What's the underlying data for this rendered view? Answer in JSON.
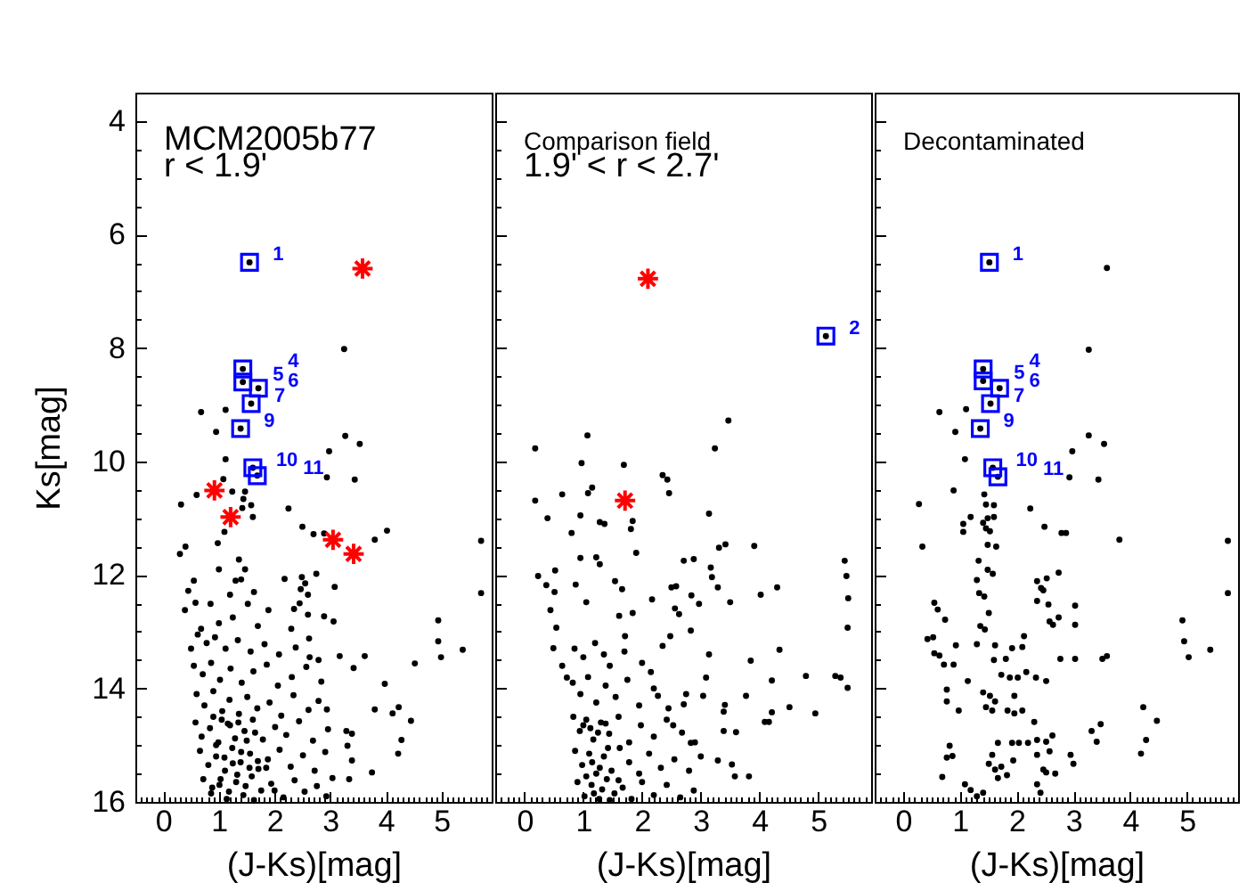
{
  "chart_data": [
    {
      "type": "scatter",
      "title": "MCM2005b77",
      "subtitle": "r < 1.9'",
      "xlabel": "(J-Ks)[mag]",
      "ylabel": "Ks[mag]",
      "xlim": [
        -0.5,
        5.9
      ],
      "ylim": [
        16,
        3.5
      ],
      "xticks": [
        {
          "value": -0.4,
          "label": null
        },
        {
          "value": -0.3,
          "label": null
        },
        {
          "value": -0.2,
          "label": null
        },
        {
          "value": -0.1,
          "label": null
        },
        0,
        {
          "value": 0.1,
          "label": null
        },
        {
          "value": 0.2,
          "label": null
        },
        {
          "value": 0.3,
          "label": null
        },
        {
          "value": 0.4,
          "label": null
        },
        {
          "value": 0.5,
          "label": null
        },
        {
          "value": 0.6,
          "label": null
        },
        {
          "value": 0.7,
          "label": null
        },
        {
          "value": 0.8,
          "label": null
        },
        {
          "value": 0.9,
          "label": null
        },
        1,
        {
          "value": 1.1,
          "label": null
        },
        {
          "value": 1.2,
          "label": null
        },
        {
          "value": 1.3,
          "label": null
        },
        {
          "value": 1.4,
          "label": null
        },
        {
          "value": 1.5,
          "label": null
        },
        {
          "value": 1.6,
          "label": null
        },
        {
          "value": 1.7,
          "label": null
        },
        {
          "value": 1.8,
          "label": null
        },
        {
          "value": 1.9,
          "label": null
        },
        2,
        {
          "value": 2.1,
          "label": null
        },
        {
          "value": 2.2,
          "label": null
        },
        {
          "value": 2.3,
          "label": null
        },
        {
          "value": 2.4,
          "label": null
        },
        {
          "value": 2.5,
          "label": null
        },
        {
          "value": 2.6,
          "label": null
        },
        {
          "value": 2.7,
          "label": null
        },
        {
          "value": 2.8,
          "label": null
        },
        {
          "value": 2.9,
          "label": null
        },
        3,
        {
          "value": 3.1,
          "label": null
        },
        {
          "value": 3.2,
          "label": null
        },
        {
          "value": 3.3,
          "label": null
        },
        {
          "value": 3.4,
          "label": null
        },
        {
          "value": 3.5,
          "label": null
        },
        {
          "value": 3.6,
          "label": null
        },
        {
          "value": 3.7,
          "label": null
        },
        {
          "value": 3.8,
          "label": null
        },
        {
          "value": 3.9,
          "label": null
        },
        4,
        {
          "value": 4.1,
          "label": null
        },
        {
          "value": 4.2,
          "label": null
        },
        {
          "value": 4.3,
          "label": null
        },
        {
          "value": 4.4,
          "label": null
        },
        {
          "value": 4.5,
          "label": null
        },
        {
          "value": 4.6,
          "label": null
        },
        {
          "value": 4.7,
          "label": null
        },
        {
          "value": 4.8,
          "label": null
        },
        {
          "value": 4.9,
          "label": null
        },
        5,
        {
          "value": 5.1,
          "label": null
        },
        {
          "value": 5.2,
          "label": null
        },
        {
          "value": 5.3,
          "label": null
        },
        {
          "value": 5.4,
          "label": null
        },
        {
          "value": 5.5,
          "label": null
        },
        {
          "value": 5.6,
          "label": null
        },
        {
          "value": 5.7,
          "label": null
        },
        {
          "value": 5.8,
          "label": null
        }
      ],
      "yticks": [
        4,
        {
          "value": 4.5,
          "label": null
        },
        {
          "value": 5,
          "label": null
        },
        {
          "value": 5.5,
          "label": null
        },
        6,
        {
          "value": 6.5,
          "label": null
        },
        {
          "value": 7,
          "label": null
        },
        {
          "value": 7.5,
          "label": null
        },
        8,
        {
          "value": 8.5,
          "label": null
        },
        {
          "value": 9,
          "label": null
        },
        {
          "value": 9.5,
          "label": null
        },
        10,
        {
          "value": 10.5,
          "label": null
        },
        {
          "value": 11,
          "label": null
        },
        {
          "value": 11.5,
          "label": null
        },
        12,
        {
          "value": 12.5,
          "label": null
        },
        {
          "value": 13,
          "label": null
        },
        {
          "value": 13.5,
          "label": null
        },
        14,
        {
          "value": 14.5,
          "label": null
        },
        {
          "value": 15,
          "label": null
        },
        {
          "value": 15.5,
          "label": null
        },
        16
      ],
      "series": [
        {
          "color": "#000000",
          "marker": "circle",
          "x": [
            1.55,
            1.43,
            1.43,
            1.71,
            1.58,
            1.39,
            1.61,
            1.69,
            3.25,
            0.68,
            1.12,
            0.95,
            3.27,
            3.53,
            2.98,
            1.12,
            2.94,
            3.44,
            1.08,
            1.24,
            1.47,
            0.32,
            0.6,
            1.44,
            1.58,
            1.42,
            2.25,
            1.61,
            2.5,
            4.02,
            1.1,
            2.7,
            2.89,
            3.8,
            5.71,
            0.4,
            0.3,
            0.98,
            1.36,
            1.47,
            0.55,
            1.3,
            1.4,
            2.18,
            2.49,
            2.55,
            2.47,
            2.75,
            3.08,
            5.71,
            0.45,
            0.58,
            0.39,
            0.85,
            1.63,
            1.52,
            1.89,
            2.89,
            3.06,
            4.94,
            4.94,
            4.99,
            5.38,
            4.52,
            3.62,
            3.42,
            3.17,
            2.63,
            2.79,
            3.98,
            3.8,
            4.12,
            4.23,
            4.45,
            4.28,
            4.22,
            3.75,
            3.34,
            3.39,
            3.31,
            3.39,
            2.94,
            3.29,
            0.5,
            0.68,
            1.0,
            1.25,
            1.7,
            2.3,
            2.6,
            2.45,
            1.2,
            1.0,
            2.6,
            2.35,
            0.62,
            0.78,
            0.93,
            1.12,
            1.34,
            1.57,
            1.82,
            2.08,
            2.38,
            2.62,
            0.55,
            0.71,
            0.86,
            1.02,
            1.21,
            1.41,
            1.62,
            1.86,
            2.06,
            2.31,
            2.57,
            2.84,
            0.6,
            0.74,
            0.9,
            1.06,
            1.19,
            1.36,
            1.51,
            1.69,
            1.91,
            2.12,
            2.34,
            2.61,
            2.79,
            0.58,
            0.69,
            0.84,
            0.99,
            1.16,
            1.29,
            1.46,
            1.61,
            1.79,
            2.01,
            2.21,
            2.44,
            2.69,
            2.96,
            0.66,
            0.81,
            0.95,
            1.11,
            1.24,
            1.39,
            1.56,
            1.71,
            1.88,
            2.09,
            2.29,
            2.51,
            2.72,
            2.91,
            0.72,
            0.86,
            1.01,
            1.14,
            1.31,
            1.44,
            1.59,
            1.76,
            1.94,
            2.16,
            2.36,
            2.54,
            2.76,
            2.93,
            3.04,
            0.9,
            1.05,
            1.2,
            1.35,
            1.5,
            1.65,
            0.95,
            1.1,
            1.25,
            1.4,
            1.55,
            1.7,
            0.88,
            1.03,
            1.18,
            1.33,
            1.48,
            1.63,
            1.85,
            2.0
          ],
          "values": [
            6.49,
            8.37,
            8.6,
            8.71,
            8.98,
            9.42,
            10.11,
            10.25,
            8.02,
            9.13,
            9.09,
            9.48,
            9.55,
            9.69,
            9.82,
            9.96,
            10.28,
            10.32,
            10.31,
            10.53,
            10.53,
            10.76,
            10.59,
            10.66,
            10.77,
            10.82,
            10.83,
            10.98,
            11.15,
            11.22,
            11.24,
            11.28,
            11.27,
            11.38,
            11.4,
            11.5,
            11.63,
            11.44,
            11.73,
            11.9,
            12.1,
            12.1,
            12.08,
            12.07,
            12.04,
            12.15,
            12.25,
            11.98,
            12.21,
            12.32,
            12.28,
            12.49,
            12.62,
            12.51,
            12.3,
            12.51,
            12.62,
            12.73,
            12.82,
            12.8,
            13.17,
            13.45,
            13.32,
            13.56,
            13.43,
            13.64,
            13.43,
            13.45,
            13.5,
            13.92,
            14.37,
            14.44,
            14.33,
            14.57,
            14.91,
            15.15,
            15.48,
            15.6,
            15.27,
            15.01,
            14.8,
            14.37,
            14.75,
            13.3,
            12.95,
            12.85,
            12.75,
            12.9,
            12.95,
            12.7,
            12.5,
            12.35,
            11.9,
            12.35,
            12.6,
            13.05,
            13.2,
            13.1,
            13.3,
            13.15,
            13.35,
            13.22,
            13.4,
            13.28,
            13.12,
            13.6,
            13.75,
            13.55,
            13.85,
            13.65,
            13.9,
            13.7,
            13.58,
            13.95,
            13.8,
            13.62,
            13.88,
            14.1,
            14.3,
            14.05,
            14.4,
            14.2,
            14.45,
            14.15,
            14.35,
            14.25,
            14.48,
            14.12,
            14.38,
            14.22,
            14.6,
            14.85,
            14.7,
            14.95,
            14.62,
            14.88,
            14.75,
            14.55,
            14.9,
            14.68,
            14.82,
            14.58,
            14.92,
            14.72,
            15.1,
            15.35,
            15.2,
            15.45,
            15.05,
            15.3,
            15.15,
            15.42,
            15.25,
            15.08,
            15.38,
            15.18,
            15.45,
            15.12,
            15.6,
            15.85,
            15.7,
            15.95,
            15.65,
            15.88,
            15.55,
            15.8,
            15.68,
            15.92,
            15.62,
            15.82,
            15.72,
            15.9,
            15.58,
            14.5,
            14.55,
            14.65,
            14.6,
            14.92,
            14.78,
            15.0,
            15.22,
            15.32,
            15.12,
            15.4,
            15.28,
            15.75,
            15.6,
            15.82,
            15.52,
            15.72,
            15.97,
            15.4,
            15.8
          ]
        },
        {
          "color": "#0000ff",
          "marker": "square",
          "x": [
            1.55,
            1.43,
            1.43,
            1.71,
            1.58,
            1.39,
            1.61,
            1.69
          ],
          "values": [
            6.49,
            8.37,
            8.6,
            8.71,
            8.98,
            9.42,
            10.11,
            10.25
          ]
        },
        {
          "color": "#ff0000",
          "marker": "cross",
          "x": [
            3.58,
            0.92,
            1.21,
            3.05,
            3.42
          ],
          "values": [
            6.6,
            10.51,
            10.98,
            11.38,
            11.63
          ]
        }
      ],
      "annotations": [
        {
          "text": "1",
          "x": 1.55,
          "y": 6.49
        },
        {
          "text": "5",
          "x": 1.43,
          "y": 8.6
        },
        {
          "text": "4",
          "x": 1.43,
          "y": 8.37
        },
        {
          "text": "6",
          "x": 1.71,
          "y": 8.71
        },
        {
          "text": "7",
          "x": 1.58,
          "y": 8.98
        },
        {
          "text": "9",
          "x": 1.39,
          "y": 9.42
        },
        {
          "text": "10",
          "x": 1.61,
          "y": 10.11
        },
        {
          "text": "11",
          "x": 1.69,
          "y": 10.25
        }
      ]
    },
    {
      "type": "scatter",
      "title": "Comparison field",
      "subtitle": "1.9' < r < 2.7'",
      "xlabel": "(J-Ks)[mag]",
      "xlim": [
        -0.5,
        5.9
      ],
      "ylim": [
        16,
        3.5
      ],
      "tick_labels": "x",
      "xticks": [
        {
          "value": -0.4,
          "label": null
        },
        {
          "value": -0.3,
          "label": null
        },
        {
          "value": -0.2,
          "label": null
        },
        {
          "value": -0.1,
          "label": null
        },
        0,
        {
          "value": 0.1,
          "label": null
        },
        {
          "value": 0.2,
          "label": null
        },
        {
          "value": 0.3,
          "label": null
        },
        {
          "value": 0.4,
          "label": null
        },
        {
          "value": 0.5,
          "label": null
        },
        {
          "value": 0.6,
          "label": null
        },
        {
          "value": 0.7,
          "label": null
        },
        {
          "value": 0.8,
          "label": null
        },
        {
          "value": 0.9,
          "label": null
        },
        1,
        {
          "value": 1.1,
          "label": null
        },
        {
          "value": 1.2,
          "label": null
        },
        {
          "value": 1.3,
          "label": null
        },
        {
          "value": 1.4,
          "label": null
        },
        {
          "value": 1.5,
          "label": null
        },
        {
          "value": 1.6,
          "label": null
        },
        {
          "value": 1.7,
          "label": null
        },
        {
          "value": 1.8,
          "label": null
        },
        {
          "value": 1.9,
          "label": null
        },
        2,
        {
          "value": 2.1,
          "label": null
        },
        {
          "value": 2.2,
          "label": null
        },
        {
          "value": 2.3,
          "label": null
        },
        {
          "value": 2.4,
          "label": null
        },
        {
          "value": 2.5,
          "label": null
        },
        {
          "value": 2.6,
          "label": null
        },
        {
          "value": 2.7,
          "label": null
        },
        {
          "value": 2.8,
          "label": null
        },
        {
          "value": 2.9,
          "label": null
        },
        3,
        {
          "value": 3.1,
          "label": null
        },
        {
          "value": 3.2,
          "label": null
        },
        {
          "value": 3.3,
          "label": null
        },
        {
          "value": 3.4,
          "label": null
        },
        {
          "value": 3.5,
          "label": null
        },
        {
          "value": 3.6,
          "label": null
        },
        {
          "value": 3.7,
          "label": null
        },
        {
          "value": 3.8,
          "label": null
        },
        {
          "value": 3.9,
          "label": null
        },
        4,
        {
          "value": 4.1,
          "label": null
        },
        {
          "value": 4.2,
          "label": null
        },
        {
          "value": 4.3,
          "label": null
        },
        {
          "value": 4.4,
          "label": null
        },
        {
          "value": 4.5,
          "label": null
        },
        {
          "value": 4.6,
          "label": null
        },
        {
          "value": 4.7,
          "label": null
        },
        {
          "value": 4.8,
          "label": null
        },
        {
          "value": 4.9,
          "label": null
        },
        5,
        {
          "value": 5.1,
          "label": null
        },
        {
          "value": 5.2,
          "label": null
        },
        {
          "value": 5.3,
          "label": null
        },
        {
          "value": 5.4,
          "label": null
        },
        {
          "value": 5.5,
          "label": null
        },
        {
          "value": 5.6,
          "label": null
        },
        {
          "value": 5.7,
          "label": null
        },
        {
          "value": 5.8,
          "label": null
        }
      ],
      "yticks": [
        4,
        {
          "value": 4.5,
          "label": null
        },
        {
          "value": 5,
          "label": null
        },
        {
          "value": 5.5,
          "label": null
        },
        6,
        {
          "value": 6.5,
          "label": null
        },
        {
          "value": 7,
          "label": null
        },
        {
          "value": 7.5,
          "label": null
        },
        8,
        {
          "value": 8.5,
          "label": null
        },
        {
          "value": 9,
          "label": null
        },
        {
          "value": 9.5,
          "label": null
        },
        10,
        {
          "value": 10.5,
          "label": null
        },
        {
          "value": 11,
          "label": null
        },
        {
          "value": 11.5,
          "label": null
        },
        12,
        {
          "value": 12.5,
          "label": null
        },
        {
          "value": 13,
          "label": null
        },
        {
          "value": 13.5,
          "label": null
        },
        14,
        {
          "value": 14.5,
          "label": null
        },
        {
          "value": 15,
          "label": null
        },
        {
          "value": 15.5,
          "label": null
        },
        16
      ],
      "series": [
        {
          "color": "#000000",
          "marker": "circle",
          "x": [
            5.13,
            3.47,
            1.07,
            0.18,
            3.24,
            0.97,
            1.69,
            2.35,
            2.43,
            2.46,
            1.15,
            1.08,
            0.64,
            0.18,
            0.39,
            0.95,
            1.28,
            1.36,
            1.84,
            1.81,
            0.8,
            3.14,
            3.42,
            3.31,
            3.91,
            5.45,
            5.48,
            5.51,
            5.5,
            5.5,
            5.29,
            5.38,
            4.79,
            4.95,
            4.21,
            4.34,
            3.85,
            4.3,
            4.02,
            4.51,
            4.21,
            4.09,
            4.16,
            3.6,
            3.58,
            3.82,
            3.53,
            3.77,
            3.41,
            3.39,
            3.5,
            3.29,
            3.17,
            3.19,
            2.71,
            2.88,
            2.5,
            2.58,
            2.84,
            2.56,
            2.63,
            2.97,
            2.17,
            1.9,
            1.22,
            1.28,
            0.95,
            0.23,
            0.52,
            0.37,
            0.51,
            0.87,
            1.05,
            1.54,
            1.66,
            0.44,
            0.54,
            0.49,
            0.64,
            0.72,
            1.61,
            1.84,
            1.35,
            1.71,
            2.15,
            2.27,
            2.83,
            2.48,
            3.14,
            2.71,
            2.53,
            2.83,
            3.09,
            3.04,
            3.39,
            3.29,
            0.85,
            1.0,
            1.2,
            1.45,
            1.7,
            2.0,
            2.35,
            0.82,
            0.95,
            1.08,
            1.22,
            1.38,
            1.55,
            1.75,
            1.95,
            2.2,
            2.45,
            2.75,
            0.83,
            0.94,
            1.05,
            1.17,
            1.3,
            1.44,
            1.6,
            1.78,
            1.98,
            2.2,
            2.42,
            2.68,
            2.9,
            0.86,
            0.98,
            1.1,
            1.22,
            1.35,
            1.48,
            1.62,
            1.78,
            1.95,
            2.12,
            2.32,
            2.55,
            2.8,
            3.0,
            0.9,
            1.02,
            1.14,
            1.27,
            1.4,
            1.53,
            1.67,
            1.82,
            2.0,
            2.2,
            2.42,
            2.65,
            2.88,
            1.0,
            1.12,
            1.25,
            1.38,
            1.15,
            1.28,
            1.42,
            1.05,
            1.18,
            1.32,
            1.45,
            1.6
          ],
          "values": [
            7.79,
            9.28,
            9.54,
            9.77,
            9.77,
            10.03,
            10.06,
            10.24,
            10.32,
            10.56,
            10.46,
            10.56,
            10.58,
            10.69,
            11.0,
            10.95,
            11.07,
            11.1,
            11.05,
            11.19,
            11.26,
            10.92,
            11.46,
            11.52,
            11.49,
            11.75,
            12.02,
            12.41,
            12.93,
            13.99,
            13.78,
            13.81,
            13.78,
            14.44,
            13.86,
            13.32,
            13.51,
            12.22,
            12.35,
            14.33,
            14.42,
            14.59,
            14.59,
            14.77,
            15.55,
            15.55,
            15.34,
            14.13,
            14.29,
            14.41,
            12.48,
            12.22,
            11.87,
            12.04,
            11.75,
            11.72,
            12.22,
            12.2,
            12.36,
            12.59,
            12.69,
            12.51,
            12.43,
            11.61,
            11.69,
            11.81,
            11.7,
            12.02,
            11.92,
            12.18,
            12.3,
            12.17,
            12.48,
            12.11,
            12.25,
            12.62,
            12.93,
            13.29,
            13.6,
            13.81,
            12.72,
            12.67,
            13.4,
            13.08,
            13.71,
            14.13,
            12.98,
            13.08,
            13.4,
            14.28,
            14.65,
            14.96,
            13.81,
            14.13,
            14.75,
            15.27,
            13.3,
            13.45,
            13.2,
            13.6,
            13.35,
            13.55,
            13.25,
            13.9,
            14.1,
            13.8,
            14.25,
            13.95,
            14.15,
            13.85,
            14.3,
            14.0,
            14.35,
            14.1,
            14.5,
            14.75,
            14.55,
            14.9,
            14.6,
            14.8,
            14.5,
            14.95,
            14.65,
            14.85,
            14.55,
            14.78,
            14.95,
            15.1,
            15.35,
            15.15,
            15.5,
            15.2,
            15.45,
            15.05,
            15.3,
            15.5,
            15.15,
            15.4,
            15.25,
            15.45,
            15.2,
            15.65,
            15.9,
            15.7,
            15.95,
            15.6,
            15.85,
            15.75,
            15.95,
            15.65,
            15.88,
            15.7,
            15.92,
            15.8,
            14.65,
            14.7,
            14.78,
            14.62,
            15.3,
            15.4,
            15.05,
            15.55,
            15.85,
            15.78,
            15.97,
            15.62
          ]
        },
        {
          "color": "#0000ff",
          "marker": "square",
          "x": [
            5.13
          ],
          "values": [
            7.79
          ]
        },
        {
          "color": "#ff0000",
          "marker": "cross",
          "x": [
            2.1,
            1.71
          ],
          "values": [
            6.78,
            10.69
          ]
        }
      ],
      "annotations": [
        {
          "text": "2",
          "x": 5.13,
          "y": 7.79
        }
      ]
    },
    {
      "type": "scatter",
      "title": "Decontaminated",
      "xlabel": "(J-Ks)[mag]",
      "xlim": [
        -0.5,
        5.9
      ],
      "ylim": [
        16,
        3.5
      ],
      "tick_labels": "x",
      "xticks": [
        {
          "value": -0.4,
          "label": null
        },
        {
          "value": -0.3,
          "label": null
        },
        {
          "value": -0.2,
          "label": null
        },
        {
          "value": -0.1,
          "label": null
        },
        0,
        {
          "value": 0.1,
          "label": null
        },
        {
          "value": 0.2,
          "label": null
        },
        {
          "value": 0.3,
          "label": null
        },
        {
          "value": 0.4,
          "label": null
        },
        {
          "value": 0.5,
          "label": null
        },
        {
          "value": 0.6,
          "label": null
        },
        {
          "value": 0.7,
          "label": null
        },
        {
          "value": 0.8,
          "label": null
        },
        {
          "value": 0.9,
          "label": null
        },
        1,
        {
          "value": 1.1,
          "label": null
        },
        {
          "value": 1.2,
          "label": null
        },
        {
          "value": 1.3,
          "label": null
        },
        {
          "value": 1.4,
          "label": null
        },
        {
          "value": 1.5,
          "label": null
        },
        {
          "value": 1.6,
          "label": null
        },
        {
          "value": 1.7,
          "label": null
        },
        {
          "value": 1.8,
          "label": null
        },
        {
          "value": 1.9,
          "label": null
        },
        2,
        {
          "value": 2.1,
          "label": null
        },
        {
          "value": 2.2,
          "label": null
        },
        {
          "value": 2.3,
          "label": null
        },
        {
          "value": 2.4,
          "label": null
        },
        {
          "value": 2.5,
          "label": null
        },
        {
          "value": 2.6,
          "label": null
        },
        {
          "value": 2.7,
          "label": null
        },
        {
          "value": 2.8,
          "label": null
        },
        {
          "value": 2.9,
          "label": null
        },
        3,
        {
          "value": 3.1,
          "label": null
        },
        {
          "value": 3.2,
          "label": null
        },
        {
          "value": 3.3,
          "label": null
        },
        {
          "value": 3.4,
          "label": null
        },
        {
          "value": 3.5,
          "label": null
        },
        {
          "value": 3.6,
          "label": null
        },
        {
          "value": 3.7,
          "label": null
        },
        {
          "value": 3.8,
          "label": null
        },
        {
          "value": 3.9,
          "label": null
        },
        4,
        {
          "value": 4.1,
          "label": null
        },
        {
          "value": 4.2,
          "label": null
        },
        {
          "value": 4.3,
          "label": null
        },
        {
          "value": 4.4,
          "label": null
        },
        {
          "value": 4.5,
          "label": null
        },
        {
          "value": 4.6,
          "label": null
        },
        {
          "value": 4.7,
          "label": null
        },
        {
          "value": 4.8,
          "label": null
        },
        {
          "value": 4.9,
          "label": null
        },
        5,
        {
          "value": 5.1,
          "label": null
        },
        {
          "value": 5.2,
          "label": null
        },
        {
          "value": 5.3,
          "label": null
        },
        {
          "value": 5.4,
          "label": null
        },
        {
          "value": 5.5,
          "label": null
        },
        {
          "value": 5.6,
          "label": null
        },
        {
          "value": 5.7,
          "label": null
        },
        {
          "value": 5.8,
          "label": null
        }
      ],
      "yticks": [
        4,
        {
          "value": 4.5,
          "label": null
        },
        {
          "value": 5,
          "label": null
        },
        {
          "value": 5.5,
          "label": null
        },
        6,
        {
          "value": 6.5,
          "label": null
        },
        {
          "value": 7,
          "label": null
        },
        {
          "value": 7.5,
          "label": null
        },
        8,
        {
          "value": 8.5,
          "label": null
        },
        {
          "value": 9,
          "label": null
        },
        {
          "value": 9.5,
          "label": null
        },
        10,
        {
          "value": 10.5,
          "label": null
        },
        {
          "value": 11,
          "label": null
        },
        {
          "value": 11.5,
          "label": null
        },
        12,
        {
          "value": 12.5,
          "label": null
        },
        {
          "value": 13,
          "label": null
        },
        {
          "value": 13.5,
          "label": null
        },
        14,
        {
          "value": 14.5,
          "label": null
        },
        {
          "value": 15,
          "label": null
        },
        {
          "value": 15.5,
          "label": null
        },
        16
      ],
      "series": [
        {
          "color": "#000000",
          "marker": "circle",
          "x": [
            1.52,
            1.41,
            1.41,
            1.7,
            1.54,
            1.36,
            1.58,
            1.67,
            3.59,
            3.27,
            0.64,
            1.11,
            0.92,
            3.27,
            3.54,
            2.98,
            1.09,
            2.93,
            3.44,
            0.89,
            0.28,
            1.43,
            1.46,
            1.6,
            1.19,
            1.41,
            2.24,
            1.6,
            2.49,
            2.79,
            2.87,
            1.06,
            1.06,
            1.46,
            1.53,
            1.49,
            0.34,
            1.49,
            1.64,
            3.81,
            5.72,
            1.33,
            1.49,
            1.58,
            1.3,
            2.36,
            2.53,
            2.74,
            2.43,
            2.47,
            5.72,
            1.34,
            1.43,
            0.55,
            0.61,
            1.51,
            2.36,
            2.56,
            2.58,
            2.64,
            2.74,
            3.03,
            0.74,
            1.36,
            1.44,
            0.43,
            0.53,
            2.13,
            3.03,
            4.92,
            4.95,
            5.03,
            5.41,
            3.51,
            3.59,
            2.77,
            3.03,
            0.55,
            0.64,
            0.72,
            0.89,
            0.93,
            1.3,
            1.62,
            1.6,
            1.81,
            1.92,
            2.1,
            1.14,
            0.77,
            0.77,
            0.98,
            1.41,
            1.53,
            1.62,
            1.46,
            1.57,
            1.73,
            1.88,
            2.02,
            2.17,
            2.34,
            2.52,
            1.96,
            1.84,
            1.96,
            2.1,
            2.31,
            2.36,
            2.52,
            2.63,
            1.67,
            1.92,
            2.04,
            2.2,
            0.82,
            0.87,
            0.77,
            1.57,
            1.73,
            1.62,
            1.94,
            2.36,
            2.58,
            2.47,
            2.68,
            2.95,
            3.0,
            3.32,
            3.48,
            3.41,
            4.23,
            4.47,
            4.28,
            4.19,
            0.69,
            1.09,
            1.19,
            1.3,
            1.41,
            2.36,
            2.42,
            2.52,
            1.51,
            1.67,
            1.83
          ],
          "values": [
            6.49,
            8.37,
            8.58,
            8.71,
            8.98,
            9.42,
            10.11,
            10.27,
            6.59,
            8.03,
            9.13,
            9.08,
            9.48,
            9.54,
            9.69,
            9.82,
            9.96,
            10.28,
            10.32,
            10.51,
            10.75,
            10.58,
            10.76,
            10.77,
            10.98,
            11.08,
            10.83,
            10.98,
            11.15,
            11.26,
            11.26,
            11.24,
            11.1,
            11.18,
            11.23,
            11.0,
            11.5,
            11.47,
            11.5,
            11.38,
            11.4,
            11.75,
            11.91,
            11.98,
            12.09,
            12.11,
            12.06,
            11.96,
            12.23,
            12.27,
            12.32,
            12.32,
            12.38,
            12.49,
            12.61,
            12.67,
            12.46,
            12.52,
            12.82,
            12.88,
            12.75,
            12.54,
            12.79,
            12.9,
            12.96,
            13.13,
            13.1,
            13.08,
            12.88,
            12.8,
            13.17,
            13.45,
            13.32,
            13.48,
            13.43,
            13.48,
            13.48,
            13.38,
            13.42,
            13.58,
            13.58,
            13.24,
            13.22,
            13.24,
            13.5,
            13.48,
            13.29,
            13.27,
            13.87,
            14.02,
            14.23,
            14.39,
            14.07,
            14.13,
            14.23,
            14.33,
            14.39,
            13.76,
            13.81,
            13.81,
            13.71,
            13.81,
            13.87,
            14.13,
            14.39,
            14.44,
            14.39,
            14.59,
            14.91,
            14.94,
            14.83,
            14.96,
            14.96,
            14.96,
            14.96,
            15.01,
            15.19,
            15.22,
            15.17,
            15.38,
            15.43,
            15.27,
            15.17,
            15.11,
            15.43,
            15.5,
            15.17,
            15.33,
            14.75,
            14.63,
            14.94,
            14.33,
            14.57,
            14.91,
            15.15,
            15.56,
            15.69,
            15.79,
            15.9,
            15.84,
            15.69,
            15.84,
            15.48,
            15.33,
            15.58,
            15.53
          ]
        },
        {
          "color": "#0000ff",
          "marker": "square",
          "x": [
            1.52,
            1.41,
            1.41,
            1.7,
            1.54,
            1.36,
            1.58,
            1.67
          ],
          "values": [
            6.49,
            8.37,
            8.58,
            8.71,
            8.98,
            9.42,
            10.11,
            10.27
          ]
        }
      ],
      "annotations": [
        {
          "text": "1",
          "x": 1.52,
          "y": 6.49
        },
        {
          "text": "5",
          "x": 1.41,
          "y": 8.58
        },
        {
          "text": "4",
          "x": 1.41,
          "y": 8.37
        },
        {
          "text": "6",
          "x": 1.7,
          "y": 8.71
        },
        {
          "text": "7",
          "x": 1.54,
          "y": 8.98
        },
        {
          "text": "9",
          "x": 1.36,
          "y": 9.42
        },
        {
          "text": "10",
          "x": 1.58,
          "y": 10.11
        },
        {
          "text": "11",
          "x": 1.67,
          "y": 10.27
        }
      ]
    }
  ]
}
